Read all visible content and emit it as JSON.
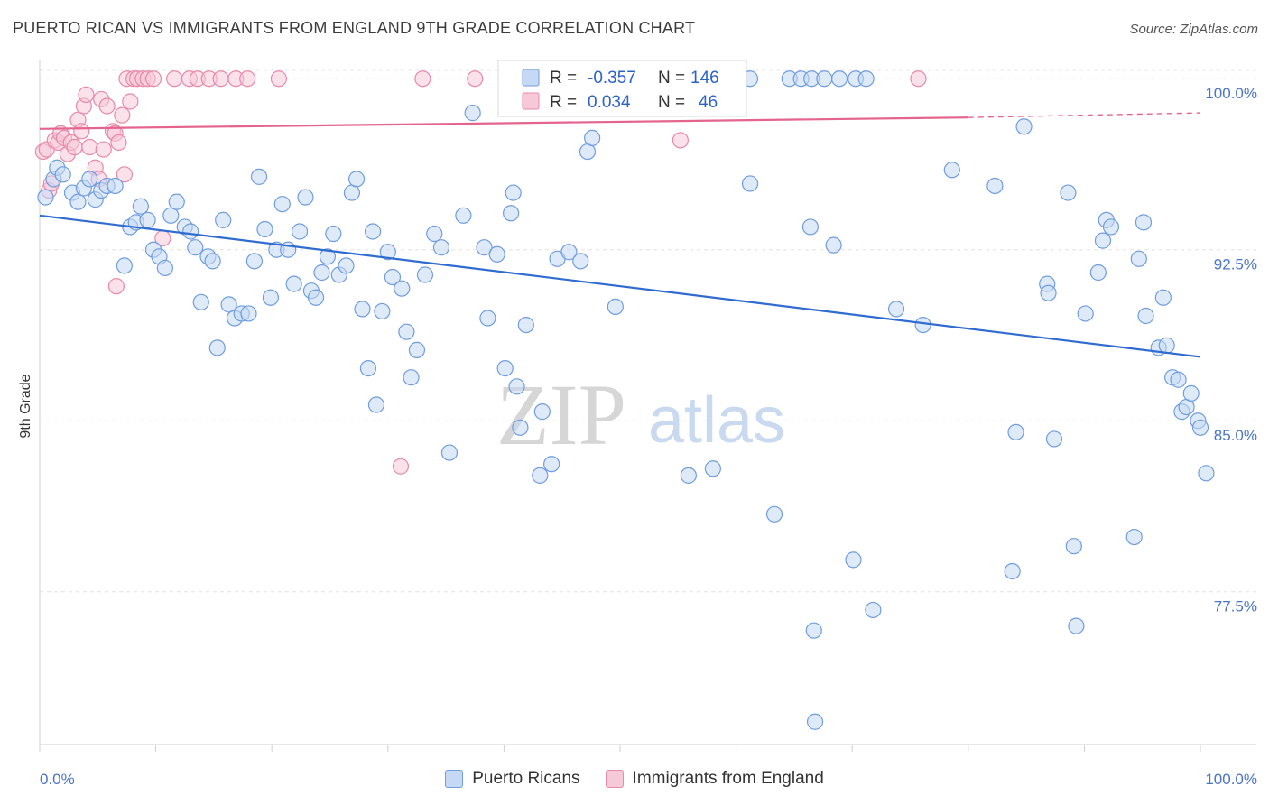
{
  "title": "PUERTO RICAN VS IMMIGRANTS FROM ENGLAND 9TH GRADE CORRELATION CHART",
  "source": "Source: ZipAtlas.com",
  "watermark": {
    "zip": "ZIP",
    "atlas": "atlas"
  },
  "chart_data": {
    "type": "scatter",
    "title": "PUERTO RICAN VS IMMIGRANTS FROM ENGLAND 9TH GRADE CORRELATION CHART",
    "xlabel": "",
    "ylabel": "9th Grade",
    "xlim": [
      0,
      100
    ],
    "ylim": [
      70.8,
      100.8
    ],
    "x_tick_labels": [
      "0.0%",
      "100.0%"
    ],
    "y_ticks": [
      {
        "value": 100.0,
        "label": "100.0%"
      },
      {
        "value": 92.5,
        "label": "92.5%"
      },
      {
        "value": 85.0,
        "label": "85.0%"
      },
      {
        "value": 77.5,
        "label": "77.5%"
      }
    ],
    "legend": {
      "r_label": "R =",
      "n_label": "N =",
      "entries": [
        {
          "name": "Puerto Ricans",
          "r": "-0.357",
          "n": "146"
        },
        {
          "name": "Immigrants from England",
          "r": "0.034",
          "n": "46"
        }
      ]
    },
    "series": [
      {
        "name": "Puerto Ricans",
        "color": "#6f9de0",
        "fill": "#c5d8f4",
        "trend": {
          "x0": 0,
          "y0": 94.0,
          "x1": 100,
          "y1": 87.8
        },
        "points": [
          [
            0.5,
            94.8
          ],
          [
            1.2,
            95.6
          ],
          [
            1.5,
            96.1
          ],
          [
            2.0,
            95.8
          ],
          [
            2.8,
            95.0
          ],
          [
            3.3,
            94.6
          ],
          [
            3.8,
            95.2
          ],
          [
            4.3,
            95.6
          ],
          [
            4.8,
            94.7
          ],
          [
            5.3,
            95.1
          ],
          [
            5.8,
            95.3
          ],
          [
            6.5,
            95.3
          ],
          [
            7.3,
            91.8
          ],
          [
            7.8,
            93.5
          ],
          [
            8.3,
            93.7
          ],
          [
            8.7,
            94.4
          ],
          [
            9.3,
            93.8
          ],
          [
            9.8,
            92.5
          ],
          [
            10.3,
            92.2
          ],
          [
            10.8,
            91.7
          ],
          [
            11.3,
            94.0
          ],
          [
            11.8,
            94.6
          ],
          [
            12.5,
            93.5
          ],
          [
            13.0,
            93.3
          ],
          [
            13.4,
            92.6
          ],
          [
            13.9,
            90.2
          ],
          [
            14.5,
            92.2
          ],
          [
            14.9,
            92.0
          ],
          [
            15.3,
            88.2
          ],
          [
            15.8,
            93.8
          ],
          [
            16.3,
            90.1
          ],
          [
            16.8,
            89.5
          ],
          [
            17.4,
            89.7
          ],
          [
            18.0,
            89.7
          ],
          [
            18.5,
            92.0
          ],
          [
            18.9,
            95.7
          ],
          [
            19.4,
            93.4
          ],
          [
            19.9,
            90.4
          ],
          [
            20.4,
            92.5
          ],
          [
            20.9,
            94.5
          ],
          [
            21.4,
            92.5
          ],
          [
            21.9,
            91.0
          ],
          [
            22.4,
            93.3
          ],
          [
            22.9,
            94.8
          ],
          [
            23.4,
            90.7
          ],
          [
            23.8,
            90.4
          ],
          [
            24.3,
            91.5
          ],
          [
            24.8,
            92.2
          ],
          [
            25.3,
            93.2
          ],
          [
            25.8,
            91.4
          ],
          [
            26.4,
            91.8
          ],
          [
            26.9,
            95.0
          ],
          [
            27.3,
            95.6
          ],
          [
            27.8,
            89.9
          ],
          [
            28.3,
            87.3
          ],
          [
            28.7,
            93.3
          ],
          [
            29.0,
            85.7
          ],
          [
            29.5,
            89.8
          ],
          [
            30.0,
            92.4
          ],
          [
            30.4,
            91.3
          ],
          [
            31.2,
            90.8
          ],
          [
            31.6,
            88.9
          ],
          [
            32.0,
            86.9
          ],
          [
            32.5,
            88.1
          ],
          [
            33.2,
            91.4
          ],
          [
            34.0,
            93.2
          ],
          [
            34.6,
            92.6
          ],
          [
            35.3,
            83.6
          ],
          [
            36.5,
            94.0
          ],
          [
            37.3,
            98.5
          ],
          [
            38.3,
            92.6
          ],
          [
            38.6,
            89.5
          ],
          [
            39.4,
            92.3
          ],
          [
            40.1,
            87.3
          ],
          [
            40.6,
            94.1
          ],
          [
            40.8,
            95.0
          ],
          [
            41.1,
            86.5
          ],
          [
            41.4,
            84.7
          ],
          [
            41.9,
            89.2
          ],
          [
            43.1,
            82.6
          ],
          [
            43.3,
            85.4
          ],
          [
            44.1,
            83.1
          ],
          [
            44.6,
            92.1
          ],
          [
            45.6,
            92.4
          ],
          [
            46.6,
            92.0
          ],
          [
            47.2,
            96.8
          ],
          [
            47.6,
            97.4
          ],
          [
            48.6,
            100.0
          ],
          [
            49.4,
            100.0
          ],
          [
            51.6,
            100.0
          ],
          [
            52.6,
            100.0
          ],
          [
            53.6,
            100.0
          ],
          [
            55.1,
            100.0
          ],
          [
            58.6,
            100.0
          ],
          [
            59.6,
            100.0
          ],
          [
            61.2,
            100.0
          ],
          [
            64.6,
            100.0
          ],
          [
            65.6,
            100.0
          ],
          [
            66.5,
            100.0
          ],
          [
            67.6,
            100.0
          ],
          [
            68.9,
            100.0
          ],
          [
            70.3,
            100.0
          ],
          [
            71.2,
            100.0
          ],
          [
            49.6,
            90.0
          ],
          [
            55.9,
            82.6
          ],
          [
            58.0,
            82.9
          ],
          [
            61.2,
            95.4
          ],
          [
            63.3,
            80.9
          ],
          [
            66.4,
            93.5
          ],
          [
            66.7,
            75.8
          ],
          [
            66.8,
            71.8
          ],
          [
            68.4,
            92.7
          ],
          [
            70.1,
            78.9
          ],
          [
            71.8,
            76.7
          ],
          [
            73.8,
            89.9
          ],
          [
            76.1,
            89.2
          ],
          [
            78.6,
            96.0
          ],
          [
            82.3,
            95.3
          ],
          [
            83.8,
            78.4
          ],
          [
            84.1,
            84.5
          ],
          [
            84.8,
            97.9
          ],
          [
            86.8,
            91.0
          ],
          [
            86.9,
            90.6
          ],
          [
            87.4,
            84.2
          ],
          [
            88.6,
            95.0
          ],
          [
            89.1,
            79.5
          ],
          [
            89.3,
            76.0
          ],
          [
            90.1,
            89.7
          ],
          [
            91.2,
            91.5
          ],
          [
            91.6,
            92.9
          ],
          [
            91.9,
            93.8
          ],
          [
            92.3,
            93.5
          ],
          [
            94.3,
            79.9
          ],
          [
            94.7,
            92.1
          ],
          [
            95.1,
            93.7
          ],
          [
            95.3,
            89.6
          ],
          [
            96.4,
            88.2
          ],
          [
            96.8,
            90.4
          ],
          [
            97.1,
            88.3
          ],
          [
            97.6,
            86.9
          ],
          [
            98.1,
            86.8
          ],
          [
            98.4,
            85.4
          ],
          [
            98.8,
            85.6
          ],
          [
            99.2,
            86.2
          ],
          [
            99.8,
            85.0
          ],
          [
            100.0,
            84.7
          ],
          [
            100.5,
            82.7
          ]
        ]
      },
      {
        "name": "Immigrants from England",
        "color": "#e88aa8",
        "fill": "#f6c9d8",
        "trend": {
          "x0": 0,
          "y0": 97.8,
          "x1": 80,
          "y1": 98.3
        },
        "trend_dashed": {
          "x0": 80,
          "y0": 98.3,
          "x1": 100,
          "y1": 98.5
        },
        "points": [
          [
            0.3,
            96.8
          ],
          [
            0.6,
            96.9
          ],
          [
            0.8,
            95.1
          ],
          [
            1.0,
            95.4
          ],
          [
            1.3,
            97.3
          ],
          [
            1.6,
            97.2
          ],
          [
            1.8,
            97.6
          ],
          [
            2.1,
            97.4
          ],
          [
            2.4,
            96.7
          ],
          [
            2.7,
            97.2
          ],
          [
            3.0,
            97.0
          ],
          [
            3.3,
            98.2
          ],
          [
            3.6,
            97.7
          ],
          [
            3.8,
            98.8
          ],
          [
            4.0,
            99.3
          ],
          [
            4.3,
            97.0
          ],
          [
            4.8,
            96.1
          ],
          [
            5.1,
            95.6
          ],
          [
            5.3,
            99.1
          ],
          [
            5.5,
            96.9
          ],
          [
            5.8,
            98.8
          ],
          [
            6.3,
            97.7
          ],
          [
            6.5,
            97.6
          ],
          [
            6.8,
            97.2
          ],
          [
            7.1,
            98.4
          ],
          [
            7.3,
            95.8
          ],
          [
            6.6,
            90.9
          ],
          [
            7.5,
            100.0
          ],
          [
            7.8,
            99.0
          ],
          [
            8.1,
            100.0
          ],
          [
            8.4,
            100.0
          ],
          [
            8.9,
            100.0
          ],
          [
            9.3,
            100.0
          ],
          [
            9.8,
            100.0
          ],
          [
            10.6,
            93.0
          ],
          [
            11.6,
            100.0
          ],
          [
            12.9,
            100.0
          ],
          [
            13.6,
            100.0
          ],
          [
            14.6,
            100.0
          ],
          [
            15.6,
            100.0
          ],
          [
            16.9,
            100.0
          ],
          [
            17.9,
            100.0
          ],
          [
            20.6,
            100.0
          ],
          [
            31.1,
            83.0
          ],
          [
            33.0,
            100.0
          ],
          [
            37.5,
            100.0
          ],
          [
            40.6,
            100.0
          ],
          [
            55.2,
            97.3
          ],
          [
            75.7,
            100.0
          ]
        ]
      }
    ]
  }
}
